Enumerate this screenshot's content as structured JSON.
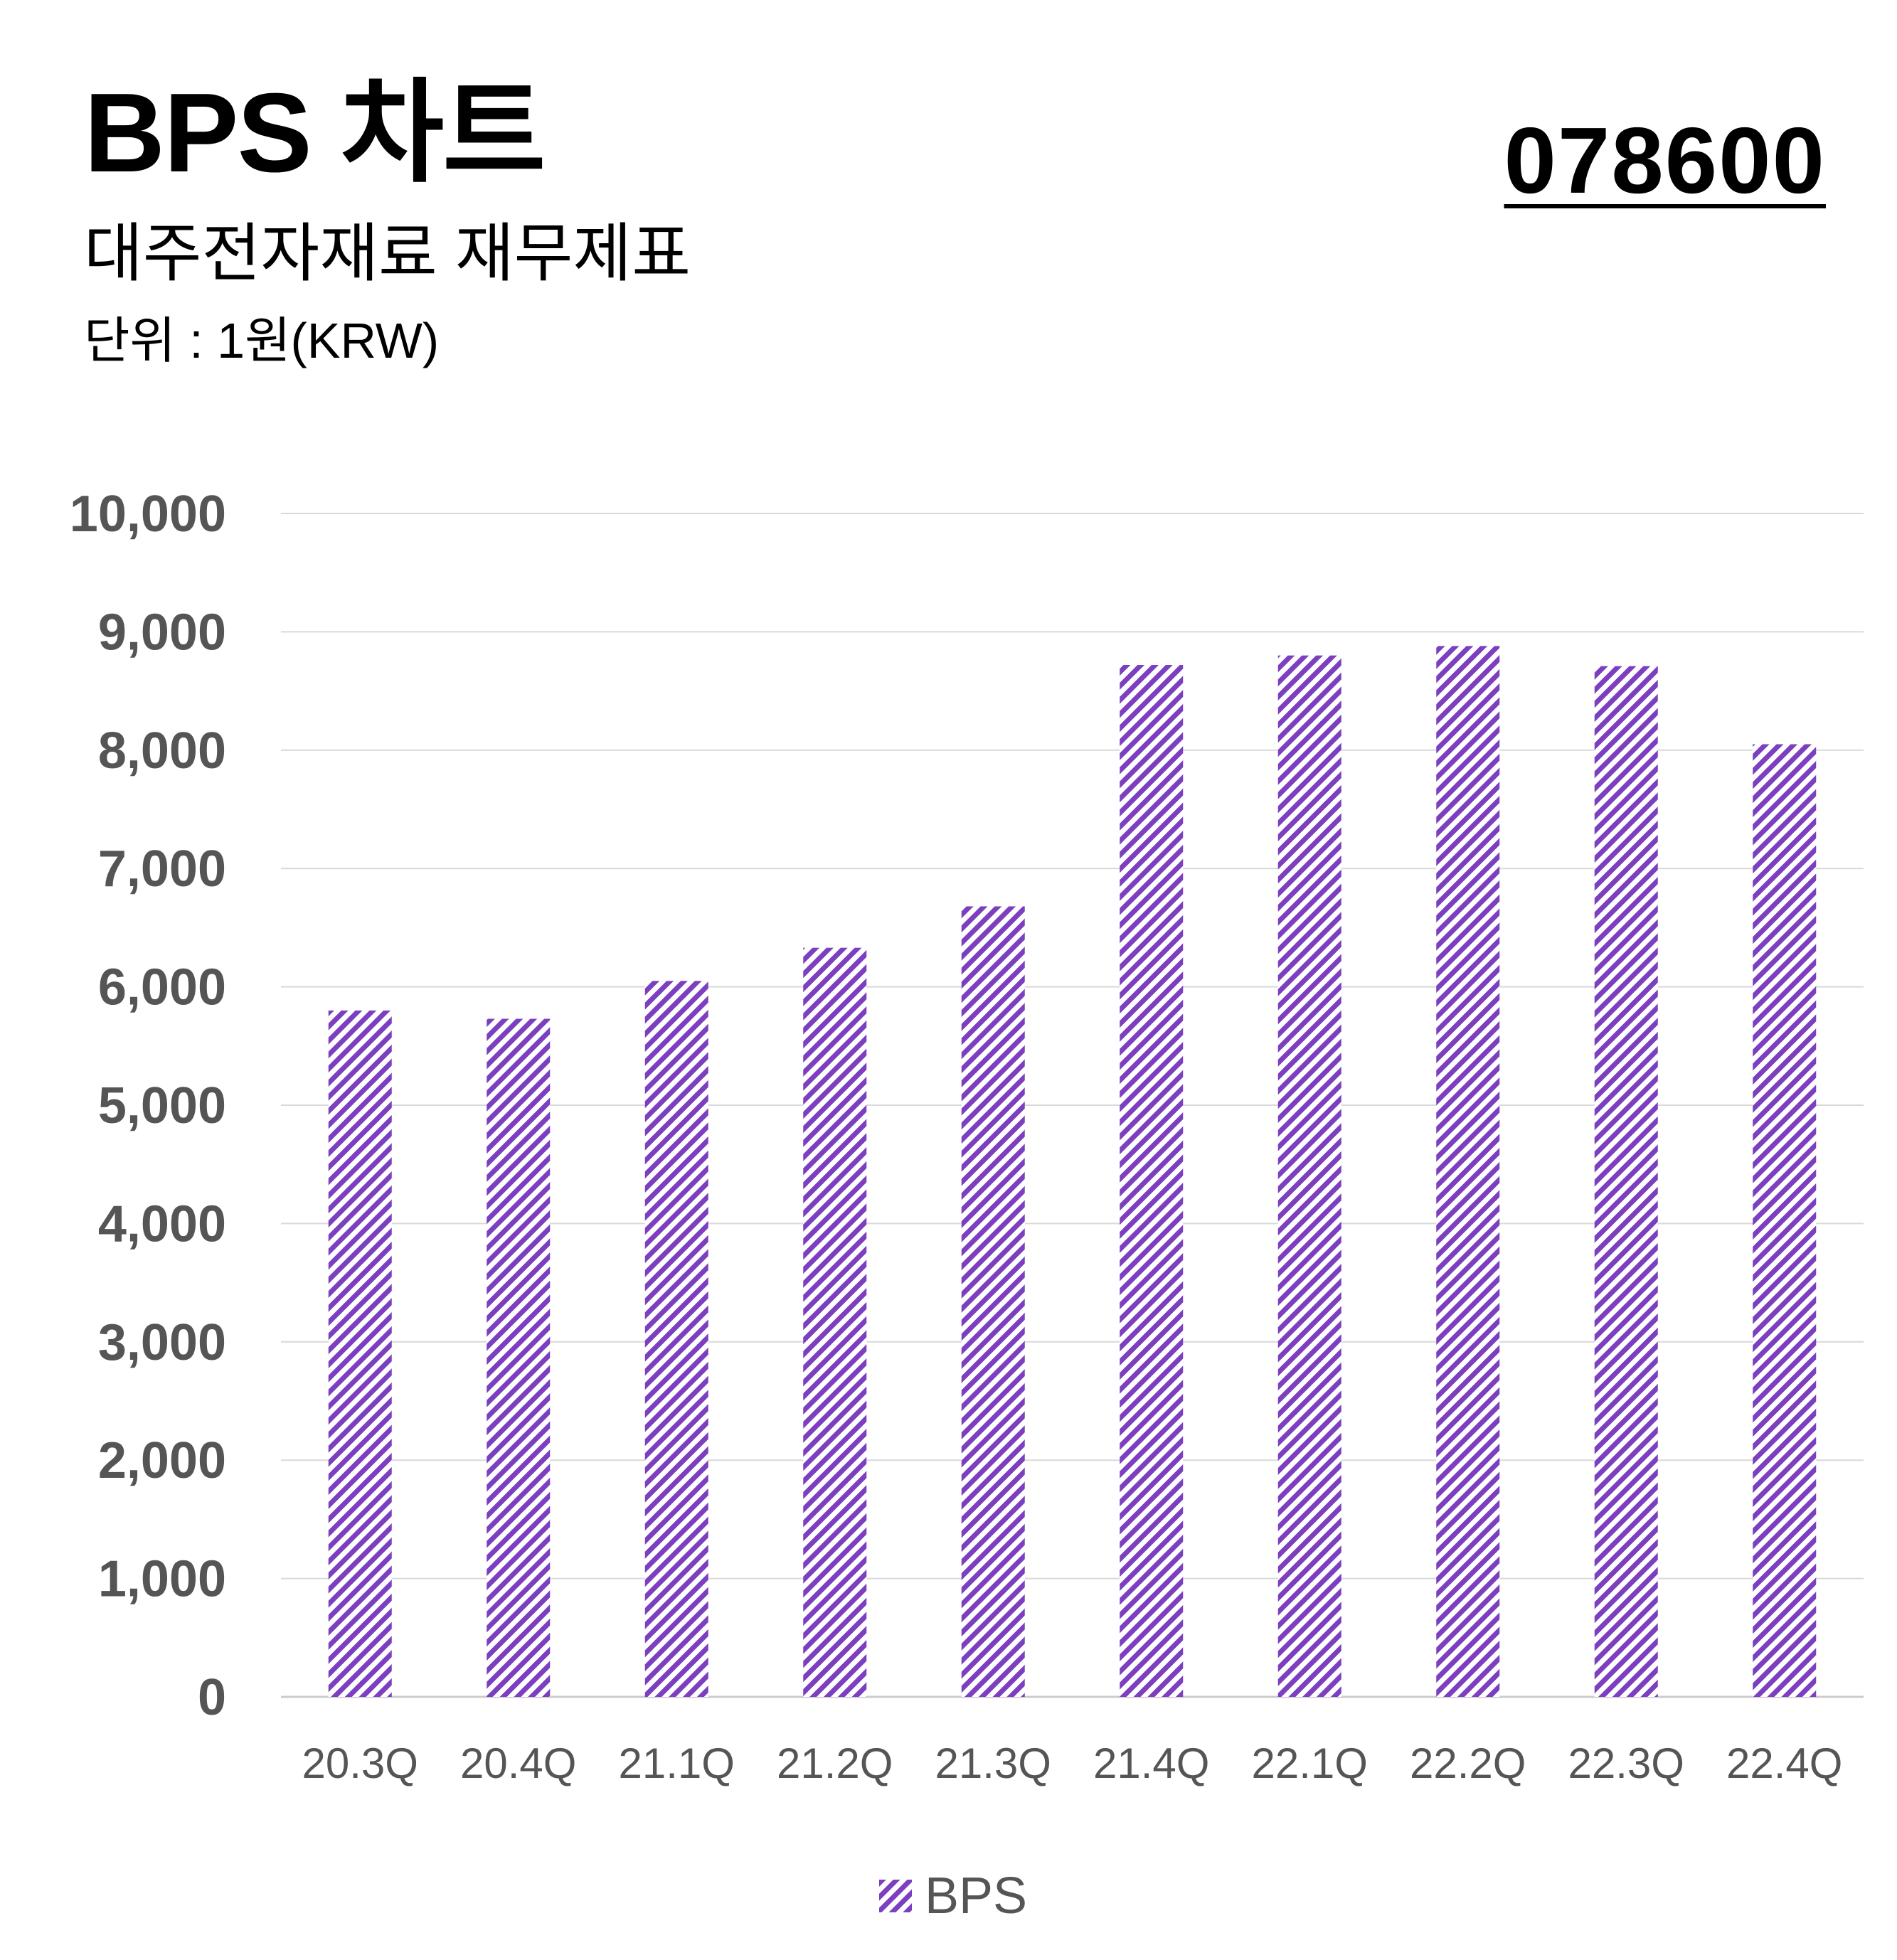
{
  "header": {
    "title": "BPS 차트",
    "subtitle": "대주전자재료 재무제표",
    "unit": "단위 : 1원(KRW)",
    "code": "078600"
  },
  "colors": {
    "bar": "#7b3fbf",
    "grid": "#d9d9d9",
    "tick_text": "#555555"
  },
  "chart_data": {
    "type": "bar",
    "categories": [
      "20.3Q",
      "20.4Q",
      "21.1Q",
      "21.2Q",
      "21.3Q",
      "21.4Q",
      "22.1Q",
      "22.2Q",
      "22.3Q",
      "22.4Q"
    ],
    "series": [
      {
        "name": "BPS",
        "values": [
          5800,
          5730,
          6050,
          6330,
          6680,
          8720,
          8800,
          8880,
          8710,
          8050
        ]
      }
    ],
    "y_ticks": [
      "0",
      "1,000",
      "2,000",
      "3,000",
      "4,000",
      "5,000",
      "6,000",
      "7,000",
      "8,000",
      "9,000",
      "10,000"
    ],
    "ylim": [
      0,
      10000
    ],
    "grid": true,
    "bar_fill": "diagonal-hatch",
    "legend_position": "bottom-center"
  }
}
